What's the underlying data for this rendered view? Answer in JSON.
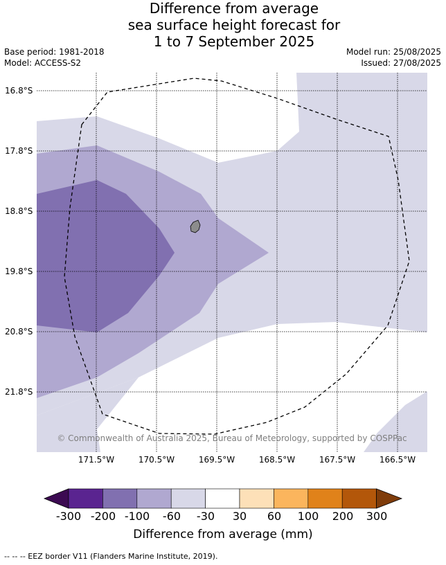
{
  "title": {
    "line1": "Difference from average",
    "line2": "sea surface height forecast for",
    "line3": "1 to 7 September 2025"
  },
  "meta": {
    "base_period": "Base period: 1981-2018",
    "model": "Model: ACCESS-S2",
    "model_run": "Model run: 25/08/2025",
    "issued": "Issued: 27/08/2025"
  },
  "map": {
    "lat_labels": [
      "16.8°S",
      "17.8°S",
      "18.8°S",
      "19.8°S",
      "20.8°S",
      "21.8°S"
    ],
    "lon_labels": [
      "171.5°W",
      "170.5°W",
      "169.5°W",
      "168.5°W",
      "167.5°W",
      "166.5°W"
    ],
    "copyright": "© Commonwealth of Australia 2025, Bureau of Meteorology, supported by COSPPac",
    "colors": {
      "level_-30_-60": "#d8d8e8",
      "level_-60_-100": "#b0a8d0",
      "level_-100_-200": "#8170b0",
      "island": "#8c8c8c",
      "grid": "#000000"
    }
  },
  "colorbar": {
    "ticks": [
      "-300",
      "-200",
      "-100",
      "-60",
      "-30",
      "30",
      "60",
      "100",
      "200",
      "300"
    ],
    "label": "Difference from average (mm)",
    "colors": [
      "#3c0a52",
      "#5a2490",
      "#8170b0",
      "#b0a8d0",
      "#d8d8e8",
      "#ffffff",
      "#fde0b8",
      "#fbb55d",
      "#e0821a",
      "#b3570a",
      "#7f3c0a"
    ]
  },
  "footnote": "--  --  -- EEZ border V11 (Flanders Marine Institute, 2019)."
}
